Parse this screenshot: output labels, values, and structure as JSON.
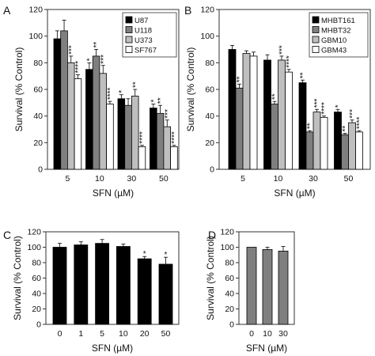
{
  "chart_data": [
    {
      "panel": "A",
      "type": "bar",
      "xlabel": "SFN (µM)",
      "ylabel": "Survival (% Control)",
      "ylim": [
        0,
        120
      ],
      "yticks": [
        0,
        20,
        40,
        60,
        80,
        100,
        120
      ],
      "categories": [
        "5",
        "10",
        "30",
        "50"
      ],
      "legend": "top-right",
      "series": [
        {
          "name": "U87",
          "color": "#000000",
          "values": [
            98,
            75,
            53,
            46
          ],
          "errors": [
            6,
            5,
            3,
            3
          ],
          "stars": [
            "",
            "*",
            "*",
            "*"
          ]
        },
        {
          "name": "U118",
          "color": "#7f7f7f",
          "values": [
            104,
            85,
            48,
            42
          ],
          "errors": [
            8,
            5,
            5,
            6
          ],
          "stars": [
            "",
            "**",
            "",
            "**"
          ]
        },
        {
          "name": "U373",
          "color": "#bfbfbf",
          "values": [
            80,
            72,
            55,
            32
          ],
          "errors": [
            5,
            6,
            5,
            5
          ],
          "stars": [
            "***",
            "***",
            "**",
            "***"
          ]
        },
        {
          "name": "SF767",
          "color": "#ffffff",
          "values": [
            68,
            49,
            17,
            17
          ],
          "errors": [
            3,
            2,
            1,
            1
          ],
          "stars": [
            "****",
            "****",
            "****",
            "****"
          ]
        }
      ]
    },
    {
      "panel": "B",
      "type": "bar",
      "xlabel": "SFN (µM)",
      "ylabel": "Survival (% Control)",
      "ylim": [
        0,
        120
      ],
      "yticks": [
        0,
        20,
        40,
        60,
        80,
        100,
        120
      ],
      "categories": [
        "5",
        "10",
        "30",
        "50"
      ],
      "legend": "top-right",
      "series": [
        {
          "name": "MHBT161",
          "color": "#000000",
          "values": [
            90,
            82,
            65,
            43
          ],
          "errors": [
            3,
            4,
            2,
            2
          ],
          "stars": [
            "",
            "",
            "**",
            "*"
          ]
        },
        {
          "name": "MHBT32",
          "color": "#7f7f7f",
          "values": [
            61,
            49,
            28,
            26
          ],
          "errors": [
            3,
            2,
            1,
            1
          ],
          "stars": [
            "**",
            "**",
            "**",
            "**"
          ]
        },
        {
          "name": "GBM10",
          "color": "#bfbfbf",
          "values": [
            87,
            82,
            43,
            35
          ],
          "errors": [
            2,
            3,
            2,
            2
          ],
          "stars": [
            "",
            "***",
            "***",
            "***"
          ]
        },
        {
          "name": "GBM43",
          "color": "#ffffff",
          "values": [
            85,
            73,
            39,
            28
          ],
          "errors": [
            3,
            2,
            1,
            1
          ],
          "stars": [
            "",
            "****",
            "****",
            "****"
          ]
        }
      ]
    },
    {
      "panel": "C",
      "type": "bar",
      "xlabel": "SFN (µM)",
      "ylabel": "Survival (% Control)",
      "ylim": [
        0,
        120
      ],
      "yticks": [
        0,
        20,
        40,
        60,
        80,
        100,
        120
      ],
      "categories": [
        "0",
        "1",
        "5",
        "10",
        "20",
        "50"
      ],
      "series": [
        {
          "color": "#000000",
          "values": [
            100,
            103,
            105,
            101,
            85,
            78
          ],
          "errors": [
            5,
            4,
            5,
            3,
            3,
            9
          ],
          "stars": [
            "",
            "",
            "",
            "",
            "*",
            "*"
          ]
        }
      ]
    },
    {
      "panel": "D",
      "type": "bar",
      "xlabel": "SFN (µM)",
      "ylabel": "Survival (% Control)",
      "ylim": [
        0,
        120
      ],
      "yticks": [
        0,
        20,
        40,
        60,
        80,
        100,
        120
      ],
      "categories": [
        "0",
        "10",
        "30"
      ],
      "series": [
        {
          "color": "#7f7f7f",
          "values": [
            100,
            97,
            95
          ],
          "errors": [
            0,
            3,
            6
          ],
          "stars": [
            "",
            "",
            ""
          ]
        }
      ]
    }
  ]
}
